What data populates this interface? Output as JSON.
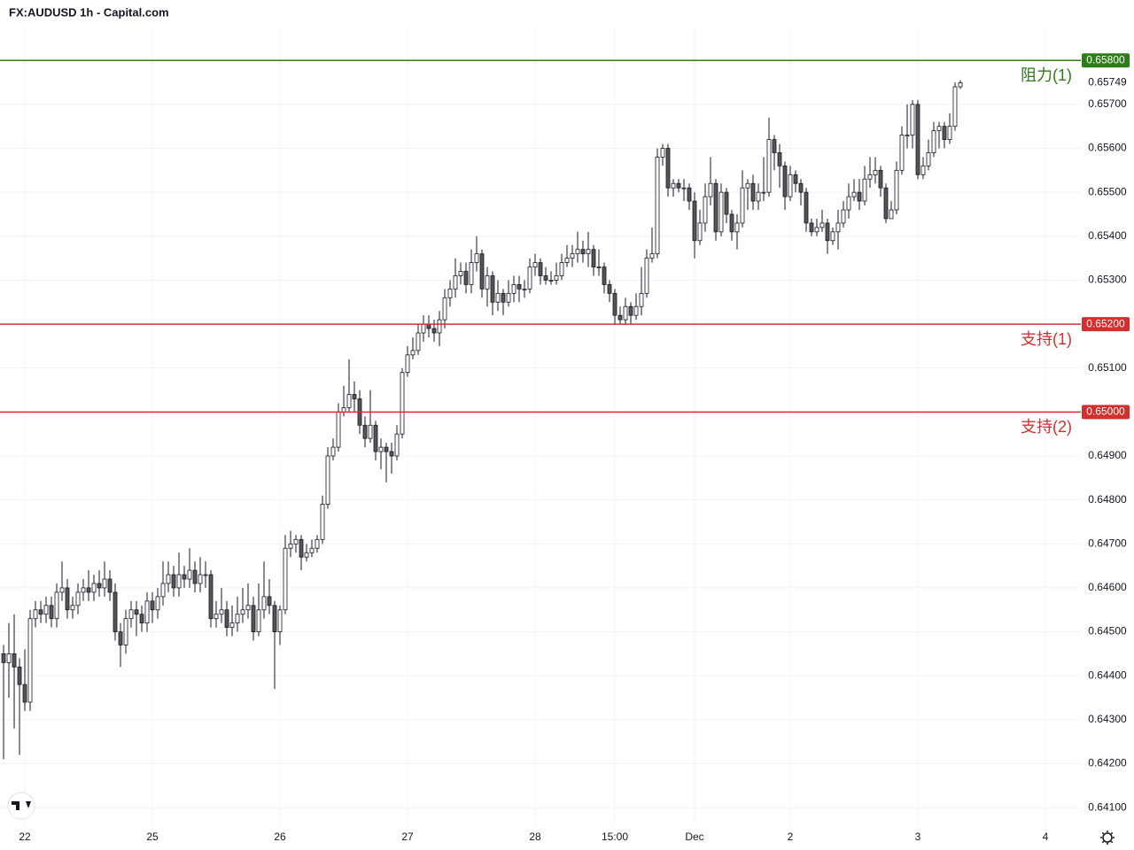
{
  "chart_data": {
    "type": "candlestick",
    "title": "FX:AUDUSD 1h - Capital.com",
    "up_color": "#ffffff",
    "down_color": "#555555",
    "ylim": [
      0.6406,
      0.65873
    ],
    "xlim": [
      -0.67,
      202.67
    ],
    "grid": true,
    "yticks": [
      {
        "value": 0.641,
        "label": "0.64100"
      },
      {
        "value": 0.642,
        "label": "0.64200"
      },
      {
        "value": 0.643,
        "label": "0.64300"
      },
      {
        "value": 0.644,
        "label": "0.64400"
      },
      {
        "value": 0.645,
        "label": "0.64500"
      },
      {
        "value": 0.646,
        "label": "0.64600"
      },
      {
        "value": 0.647,
        "label": "0.64700"
      },
      {
        "value": 0.648,
        "label": "0.64800"
      },
      {
        "value": 0.649,
        "label": "0.64900"
      },
      {
        "value": 0.651,
        "label": "0.65100"
      },
      {
        "value": 0.653,
        "label": "0.65300"
      },
      {
        "value": 0.654,
        "label": "0.65400"
      },
      {
        "value": 0.655,
        "label": "0.65500"
      },
      {
        "value": 0.656,
        "label": "0.65600"
      },
      {
        "value": 0.657,
        "label": "0.65700"
      }
    ],
    "xticks": [
      {
        "value": 4,
        "label": "22"
      },
      {
        "value": 28,
        "label": "25"
      },
      {
        "value": 52,
        "label": "26"
      },
      {
        "value": 76,
        "label": "27"
      },
      {
        "value": 100,
        "label": "28"
      },
      {
        "value": 115,
        "label": "15:00"
      },
      {
        "value": 130,
        "label": "Dec"
      },
      {
        "value": 148,
        "label": "2"
      },
      {
        "value": 172,
        "label": "3"
      },
      {
        "value": 196,
        "label": "4"
      }
    ],
    "levels": [
      {
        "value": 0.658,
        "value_label": "0.65800",
        "label": "阻力(1)",
        "color": "#2e7d18"
      },
      {
        "value": 0.652,
        "value_label": "0.65200",
        "label": "支持(1)",
        "color": "#d32f2f"
      },
      {
        "value": 0.65,
        "value_label": "0.65000",
        "label": "支持(2)",
        "color": "#d32f2f"
      }
    ],
    "last_price": {
      "value": 0.65749,
      "label": "0.65749"
    },
    "open": [
      0.6445,
      0.6443,
      0.6445,
      0.6442,
      0.6438,
      0.6434,
      0.6453,
      0.6455,
      0.6454,
      0.6456,
      0.6453,
      0.6459,
      0.646,
      0.6455,
      0.6456,
      0.6459,
      0.646,
      0.6459,
      0.6461,
      0.646,
      0.6462,
      0.6459,
      0.645,
      0.6447,
      0.6453,
      0.6455,
      0.6454,
      0.6452,
      0.6457,
      0.6455,
      0.6458,
      0.6461,
      0.6463,
      0.646,
      0.6463,
      0.6462,
      0.6464,
      0.6461,
      0.6463,
      0.6463,
      0.6453,
      0.6454,
      0.6455,
      0.6451,
      0.6452,
      0.6454,
      0.6455,
      0.6456,
      0.645,
      0.6455,
      0.6458,
      0.6456,
      0.645,
      0.6455,
      0.6469,
      0.647,
      0.6471,
      0.6467,
      0.6468,
      0.6469,
      0.6471,
      0.6479,
      0.649,
      0.6492,
      0.65,
      0.6501,
      0.6504,
      0.6503,
      0.6497,
      0.6494,
      0.6497,
      0.6491,
      0.6492,
      0.6491,
      0.649,
      0.6495,
      0.6509,
      0.6513,
      0.6514,
      0.6518,
      0.652,
      0.6519,
      0.6518,
      0.6521,
      0.6526,
      0.6528,
      0.6531,
      0.6532,
      0.6529,
      0.6534,
      0.6536,
      0.6528,
      0.6531,
      0.6525,
      0.6527,
      0.6525,
      0.6527,
      0.6529,
      0.6528,
      0.6528,
      0.6533,
      0.6534,
      0.6531,
      0.653,
      0.653,
      0.6531,
      0.6534,
      0.6535,
      0.6536,
      0.6537,
      0.6536,
      0.6537,
      0.6533,
      0.6533,
      0.6529,
      0.6527,
      0.6522,
      0.6521,
      0.6524,
      0.6522,
      0.6524,
      0.6527,
      0.6535,
      0.6536,
      0.6558,
      0.656,
      0.6551,
      0.6552,
      0.6551,
      0.6551,
      0.6548,
      0.6539,
      0.6543,
      0.6549,
      0.6552,
      0.6541,
      0.655,
      0.6545,
      0.6541,
      0.6543,
      0.6551,
      0.6552,
      0.6548,
      0.655,
      0.655,
      0.6562,
      0.6559,
      0.6556,
      0.6549,
      0.6554,
      0.6552,
      0.655,
      0.6543,
      0.6541,
      0.6542,
      0.6543,
      0.6539,
      0.6541,
      0.6543,
      0.6546,
      0.6549,
      0.655,
      0.6548,
      0.6553,
      0.6554,
      0.6555,
      0.6551,
      0.6544,
      0.6546,
      0.6555,
      0.6563,
      0.6563,
      0.657,
      0.6554,
      0.6556,
      0.6559,
      0.6564,
      0.6565,
      0.6562,
      0.6565,
      0.6574
    ],
    "high": [
      0.6447,
      0.6452,
      0.6454,
      0.6444,
      0.6446,
      0.6455,
      0.6457,
      0.6457,
      0.6458,
      0.6458,
      0.6461,
      0.6466,
      0.6462,
      0.6458,
      0.6461,
      0.6462,
      0.6464,
      0.6463,
      0.6464,
      0.6466,
      0.6464,
      0.6461,
      0.6452,
      0.6455,
      0.6457,
      0.6457,
      0.6456,
      0.6459,
      0.6459,
      0.646,
      0.6466,
      0.6466,
      0.6465,
      0.6468,
      0.6465,
      0.6469,
      0.6466,
      0.6467,
      0.6466,
      0.6464,
      0.6457,
      0.646,
      0.6457,
      0.6456,
      0.6458,
      0.646,
      0.6461,
      0.6458,
      0.6461,
      0.6466,
      0.6462,
      0.6457,
      0.6456,
      0.6472,
      0.6473,
      0.6472,
      0.6472,
      0.647,
      0.6471,
      0.6472,
      0.6481,
      0.6492,
      0.6494,
      0.6502,
      0.6506,
      0.6512,
      0.6507,
      0.6505,
      0.6499,
      0.6505,
      0.6498,
      0.6494,
      0.6493,
      0.6493,
      0.6497,
      0.651,
      0.6515,
      0.6517,
      0.652,
      0.6522,
      0.6522,
      0.6521,
      0.6523,
      0.6528,
      0.653,
      0.6535,
      0.6534,
      0.6534,
      0.6537,
      0.654,
      0.6537,
      0.6533,
      0.6532,
      0.653,
      0.6528,
      0.653,
      0.6531,
      0.6531,
      0.653,
      0.6535,
      0.6536,
      0.6535,
      0.6533,
      0.6532,
      0.6534,
      0.6536,
      0.6538,
      0.6538,
      0.6541,
      0.6539,
      0.6541,
      0.6538,
      0.6537,
      0.6534,
      0.653,
      0.6528,
      0.6524,
      0.6526,
      0.6525,
      0.6527,
      0.6533,
      0.6537,
      0.6542,
      0.656,
      0.6561,
      0.6561,
      0.6553,
      0.6553,
      0.6553,
      0.6552,
      0.655,
      0.6546,
      0.6552,
      0.6558,
      0.6553,
      0.6552,
      0.6551,
      0.6546,
      0.6545,
      0.6555,
      0.6553,
      0.6554,
      0.6552,
      0.6558,
      0.6567,
      0.6563,
      0.6561,
      0.6557,
      0.6556,
      0.6555,
      0.6553,
      0.6551,
      0.6544,
      0.6544,
      0.6546,
      0.6544,
      0.6542,
      0.6546,
      0.6548,
      0.6552,
      0.6553,
      0.6553,
      0.6556,
      0.6558,
      0.6558,
      0.6556,
      0.6552,
      0.6548,
      0.6557,
      0.6565,
      0.657,
      0.6571,
      0.6571,
      0.6558,
      0.6562,
      0.6566,
      0.6566,
      0.6566,
      0.6568,
      0.6575,
      0.65755
    ],
    "low": [
      0.6421,
      0.6435,
      0.6428,
      0.6422,
      0.6432,
      0.6432,
      0.6451,
      0.6452,
      0.6452,
      0.6451,
      0.6451,
      0.6457,
      0.6453,
      0.6453,
      0.6454,
      0.6457,
      0.6457,
      0.6457,
      0.6458,
      0.6458,
      0.6457,
      0.6448,
      0.6442,
      0.6445,
      0.6451,
      0.6449,
      0.645,
      0.645,
      0.6452,
      0.6453,
      0.6456,
      0.6459,
      0.6458,
      0.6458,
      0.646,
      0.646,
      0.6459,
      0.6459,
      0.646,
      0.6451,
      0.6451,
      0.6452,
      0.6449,
      0.6449,
      0.645,
      0.6452,
      0.6453,
      0.6448,
      0.6449,
      0.6453,
      0.6454,
      0.6437,
      0.6447,
      0.6454,
      0.6467,
      0.6468,
      0.6464,
      0.6466,
      0.6467,
      0.6468,
      0.647,
      0.6478,
      0.6489,
      0.6491,
      0.6499,
      0.65,
      0.65,
      0.6495,
      0.6492,
      0.6493,
      0.6489,
      0.6487,
      0.6484,
      0.6486,
      0.6489,
      0.6494,
      0.6508,
      0.6512,
      0.6513,
      0.6516,
      0.6517,
      0.6516,
      0.6515,
      0.6519,
      0.6524,
      0.6526,
      0.6529,
      0.6527,
      0.6527,
      0.6532,
      0.6526,
      0.6524,
      0.6522,
      0.6523,
      0.6522,
      0.6524,
      0.6525,
      0.6525,
      0.6526,
      0.6527,
      0.6531,
      0.6529,
      0.6529,
      0.6529,
      0.6529,
      0.653,
      0.6533,
      0.6533,
      0.6534,
      0.6534,
      0.6533,
      0.6531,
      0.6531,
      0.6527,
      0.6525,
      0.652,
      0.652,
      0.652,
      0.652,
      0.6521,
      0.6522,
      0.6526,
      0.6534,
      0.6535,
      0.6556,
      0.6549,
      0.6549,
      0.655,
      0.6548,
      0.6546,
      0.6535,
      0.6538,
      0.6541,
      0.6547,
      0.6539,
      0.654,
      0.6543,
      0.6539,
      0.6537,
      0.6542,
      0.6546,
      0.6546,
      0.6546,
      0.6548,
      0.6549,
      0.6555,
      0.6551,
      0.6546,
      0.6548,
      0.655,
      0.6547,
      0.6541,
      0.654,
      0.654,
      0.6541,
      0.6536,
      0.6538,
      0.6537,
      0.6542,
      0.6544,
      0.6548,
      0.6546,
      0.6547,
      0.6551,
      0.6552,
      0.6549,
      0.6543,
      0.6544,
      0.6545,
      0.6554,
      0.656,
      0.656,
      0.6553,
      0.6553,
      0.6555,
      0.6558,
      0.656,
      0.656,
      0.6561,
      0.6564,
      0.65735
    ],
    "close": [
      0.6443,
      0.6445,
      0.6442,
      0.6438,
      0.6434,
      0.6453,
      0.6455,
      0.6454,
      0.6456,
      0.6453,
      0.6459,
      0.646,
      0.6455,
      0.6456,
      0.6459,
      0.646,
      0.6459,
      0.6461,
      0.646,
      0.6462,
      0.6459,
      0.645,
      0.6447,
      0.6453,
      0.6455,
      0.6454,
      0.6452,
      0.6457,
      0.6455,
      0.6458,
      0.6461,
      0.6463,
      0.646,
      0.6463,
      0.6462,
      0.6464,
      0.6461,
      0.6463,
      0.6463,
      0.6453,
      0.6454,
      0.6455,
      0.6451,
      0.6452,
      0.6454,
      0.6455,
      0.6456,
      0.645,
      0.6455,
      0.6458,
      0.6456,
      0.645,
      0.6455,
      0.6469,
      0.647,
      0.6471,
      0.6467,
      0.6468,
      0.6469,
      0.6471,
      0.6479,
      0.649,
      0.6492,
      0.65,
      0.6501,
      0.6504,
      0.6503,
      0.6497,
      0.6494,
      0.6497,
      0.6491,
      0.6492,
      0.6491,
      0.649,
      0.6495,
      0.6509,
      0.6513,
      0.6514,
      0.6518,
      0.652,
      0.6519,
      0.6518,
      0.6521,
      0.6526,
      0.6528,
      0.6531,
      0.6532,
      0.6529,
      0.6534,
      0.6536,
      0.6528,
      0.6531,
      0.6525,
      0.6527,
      0.6525,
      0.6527,
      0.6529,
      0.6528,
      0.6528,
      0.6533,
      0.6534,
      0.6531,
      0.653,
      0.653,
      0.6531,
      0.6534,
      0.6535,
      0.6536,
      0.6537,
      0.6536,
      0.6537,
      0.6533,
      0.6533,
      0.6529,
      0.6527,
      0.6522,
      0.6521,
      0.6524,
      0.6522,
      0.6524,
      0.6527,
      0.6535,
      0.6536,
      0.6558,
      0.656,
      0.6551,
      0.6552,
      0.6551,
      0.6551,
      0.6548,
      0.6539,
      0.6543,
      0.6549,
      0.6552,
      0.6541,
      0.655,
      0.6545,
      0.6541,
      0.6543,
      0.6551,
      0.6552,
      0.6548,
      0.655,
      0.655,
      0.6562,
      0.6559,
      0.6556,
      0.6549,
      0.6554,
      0.6552,
      0.655,
      0.6543,
      0.6541,
      0.6542,
      0.6543,
      0.6539,
      0.6541,
      0.6543,
      0.6546,
      0.6549,
      0.655,
      0.6548,
      0.6553,
      0.6554,
      0.6555,
      0.6551,
      0.6544,
      0.6546,
      0.6555,
      0.6563,
      0.6563,
      0.657,
      0.6554,
      0.6556,
      0.6559,
      0.6564,
      0.6565,
      0.6562,
      0.6565,
      0.6574,
      0.65749
    ]
  }
}
